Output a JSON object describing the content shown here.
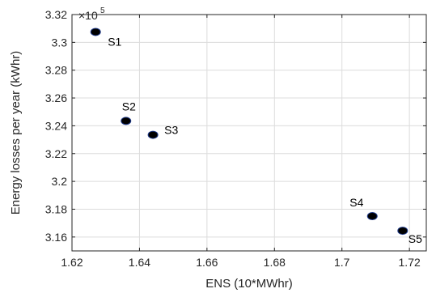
{
  "chart_data": {
    "type": "scatter",
    "xlabel": "ENS (10*MWhr)",
    "ylabel": "Energy losses per year (kWhr)",
    "y_multiplier": {
      "base": "×10",
      "exponent": "5"
    },
    "xlim": [
      1.62,
      1.725
    ],
    "ylim": [
      3.15,
      3.32
    ],
    "x_ticks": [
      1.62,
      1.64,
      1.66,
      1.68,
      1.7,
      1.72
    ],
    "x_tick_labels": [
      "1.62",
      "1.64",
      "1.66",
      "1.68",
      "1.7",
      "1.72"
    ],
    "y_ticks": [
      3.16,
      3.18,
      3.2,
      3.22,
      3.24,
      3.26,
      3.28,
      3.3,
      3.32
    ],
    "y_tick_labels": [
      "3.16",
      "3.18",
      "3.2",
      "3.22",
      "3.24",
      "3.26",
      "3.28",
      "3.3",
      "3.32"
    ],
    "grid": true,
    "marker_color": "#000000",
    "marker_edge_color": "#1f3a8a",
    "points": [
      {
        "label": "S1",
        "x": 1.627,
        "y": 3.3075
      },
      {
        "label": "S2",
        "x": 1.636,
        "y": 3.2435
      },
      {
        "label": "S3",
        "x": 1.644,
        "y": 3.2335
      },
      {
        "label": "S4",
        "x": 1.709,
        "y": 3.175
      },
      {
        "label": "S5",
        "x": 1.718,
        "y": 3.1645
      }
    ]
  }
}
